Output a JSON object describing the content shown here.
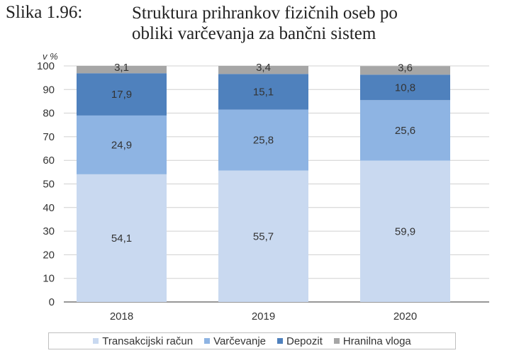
{
  "figure": {
    "label": "Slika 1.96:",
    "title_line1": "Struktura prihrankov fizičnih oseb po",
    "title_line2": "obliki varčevanja za bančni sistem"
  },
  "chart_data": {
    "type": "bar",
    "stacked": true,
    "categories": [
      "2018",
      "2019",
      "2020"
    ],
    "series": [
      {
        "name": "Transakcijski račun",
        "color": "#c9d9f0",
        "values": [
          54.1,
          55.7,
          59.9
        ],
        "labels": [
          "54,1",
          "55,7",
          "59,9"
        ]
      },
      {
        "name": "Varčevanje",
        "color": "#8eb4e3",
        "values": [
          24.9,
          25.8,
          25.6
        ],
        "labels": [
          "24,9",
          "25,8",
          "25,6"
        ]
      },
      {
        "name": "Depozit",
        "color": "#4f81bd",
        "values": [
          17.9,
          15.1,
          10.8
        ],
        "labels": [
          "17,9",
          "15,1",
          "10,8"
        ]
      },
      {
        "name": "Hranilna vloga",
        "color": "#a6a6a6",
        "values": [
          3.1,
          3.4,
          3.6
        ],
        "labels": [
          "3,1",
          "3,4",
          "3,6"
        ]
      }
    ],
    "ylabel": "v %",
    "ylim": [
      0,
      100
    ],
    "yticks": [
      0,
      10,
      20,
      30,
      40,
      50,
      60,
      70,
      80,
      90,
      100
    ],
    "grid": true,
    "legend_position": "bottom"
  }
}
